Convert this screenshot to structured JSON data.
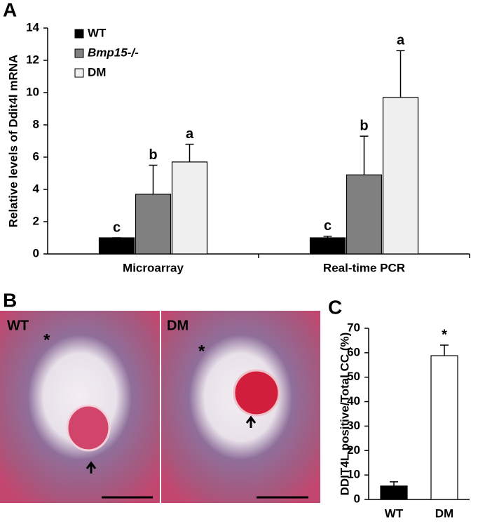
{
  "chart_data": [
    {
      "type": "bar",
      "panel_label": "A",
      "ylabel": "Relative levels of Ddit4l mRNA",
      "categories": [
        "Microarray",
        "Real-time PCR"
      ],
      "series": [
        {
          "name": "WT",
          "color": "#000000",
          "values": [
            1.0,
            1.0
          ],
          "errors": [
            0,
            0.1
          ],
          "annotations": [
            "c",
            "c"
          ]
        },
        {
          "name": "Bmp15-/-",
          "color": "#808080",
          "values": [
            3.7,
            4.9
          ],
          "errors": [
            1.8,
            2.4
          ],
          "annotations": [
            "b",
            "b"
          ]
        },
        {
          "name": "DM",
          "color": "#f0f0f0",
          "values": [
            5.7,
            9.7
          ],
          "errors": [
            1.1,
            2.9
          ],
          "annotations": [
            "a",
            "a"
          ]
        }
      ],
      "ylim": [
        0,
        14
      ],
      "yticks": [
        0,
        2,
        4,
        6,
        8,
        10,
        12,
        14
      ],
      "legend": "upper-left"
    },
    {
      "type": "bar",
      "panel_label": "C",
      "ylabel": "DDIT4L positive/Total CC (%)",
      "categories": [
        "WT",
        "DM"
      ],
      "values": [
        5.5,
        58.8
      ],
      "errors": [
        1.7,
        4.3
      ],
      "colors": [
        "#000000",
        "#ffffff"
      ],
      "annotations": [
        null,
        "*"
      ],
      "ylim": [
        0,
        70
      ],
      "yticks": [
        0,
        10,
        20,
        30,
        40,
        50,
        60,
        70
      ]
    }
  ],
  "panel_b": {
    "label": "B",
    "images": [
      {
        "label": "WT",
        "mark": "*"
      },
      {
        "label": "DM",
        "mark": "*"
      }
    ]
  }
}
